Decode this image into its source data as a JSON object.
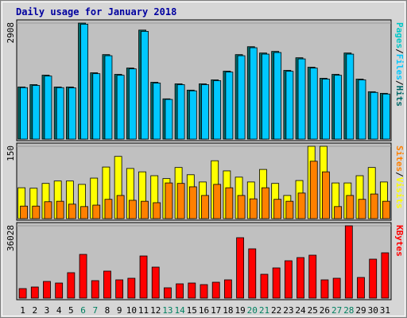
{
  "chart_data": [
    {
      "type": "bar",
      "title": "Daily usage for January 2018",
      "categories": [
        "1",
        "2",
        "3",
        "4",
        "5",
        "6",
        "7",
        "8",
        "9",
        "10",
        "11",
        "12",
        "13",
        "14",
        "15",
        "16",
        "17",
        "18",
        "19",
        "20",
        "21",
        "22",
        "23",
        "24",
        "25",
        "26",
        "27",
        "28",
        "29",
        "30",
        "31"
      ],
      "extra_legend": "Pages",
      "extra_legend_color": "#00c8c8",
      "separator": "/",
      "series": [
        {
          "name": "Hits",
          "color": "#006868",
          "values": [
            1307,
            1366,
            1603,
            1307,
            1307,
            2908,
            1663,
            2118,
            1623,
            1782,
            2732,
            1425,
            1010,
            1386,
            1228,
            1386,
            1485,
            1703,
            2118,
            2316,
            2158,
            2198,
            1723,
            2039,
            1802,
            1525,
            1623,
            2158,
            1505,
            1188,
            1148
          ]
        },
        {
          "name": "Files",
          "color": "#00c8ff",
          "values": [
            1290,
            1345,
            1580,
            1290,
            1285,
            2880,
            1640,
            2090,
            1600,
            1760,
            2700,
            1405,
            995,
            1365,
            1210,
            1365,
            1465,
            1680,
            2090,
            2290,
            2130,
            2170,
            1700,
            2010,
            1780,
            1505,
            1600,
            2130,
            1485,
            1170,
            1130
          ]
        }
      ],
      "ylim": [
        0,
        2908
      ],
      "yticks": [
        2908
      ]
    },
    {
      "type": "bar",
      "series": [
        {
          "name": "Visits",
          "color": "#ffff00",
          "values": [
            64,
            63,
            73,
            78,
            78,
            71,
            84,
            107,
            129,
            104,
            97,
            89,
            83,
            106,
            91,
            76,
            120,
            99,
            86,
            76,
            102,
            73,
            48,
            79,
            150,
            150,
            74,
            74,
            89,
            106,
            76
          ]
        },
        {
          "name": "Sites",
          "color": "#ff8000",
          "values": [
            26,
            26,
            35,
            36,
            30,
            25,
            28,
            40,
            48,
            38,
            36,
            33,
            74,
            73,
            66,
            48,
            71,
            64,
            48,
            41,
            64,
            40,
            36,
            53,
            119,
            97,
            25,
            48,
            40,
            51,
            36
          ]
        }
      ],
      "ylim": [
        0,
        150
      ],
      "yticks": [
        150
      ]
    },
    {
      "type": "bar",
      "categories": [
        "1",
        "2",
        "3",
        "4",
        "5",
        "6",
        "7",
        "8",
        "9",
        "10",
        "11",
        "12",
        "13",
        "14",
        "15",
        "16",
        "17",
        "18",
        "19",
        "20",
        "21",
        "22",
        "23",
        "24",
        "25",
        "26",
        "27",
        "28",
        "29",
        "30",
        "31"
      ],
      "highlight_indices": [
        5,
        6,
        12,
        13,
        19,
        20,
        26,
        27
      ],
      "highlight_color": "#008060",
      "series": [
        {
          "name": "KBytes",
          "color": "#ff0000",
          "values": [
            4752,
            5544,
            8316,
            7524,
            12672,
            21780,
            8712,
            13464,
            9108,
            9900,
            20988,
            15444,
            5148,
            7128,
            7524,
            6732,
            7920,
            9108,
            30096,
            24552,
            11880,
            15048,
            18612,
            20196,
            21384,
            9108,
            9900,
            36028,
            10296,
            19404,
            22572
          ]
        }
      ],
      "ylim": [
        0,
        36028
      ],
      "yticks": [
        36028
      ]
    }
  ]
}
